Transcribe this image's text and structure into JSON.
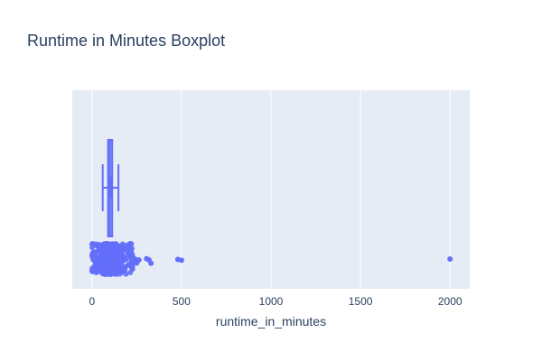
{
  "chart_data": {
    "type": "box",
    "title": "Runtime in Minutes Boxplot",
    "xlabel": "runtime_in_minutes",
    "ylabel": "",
    "xlim": [
      -110,
      2110
    ],
    "x_ticks": [
      0,
      500,
      1000,
      1500,
      2000
    ],
    "x_tick_labels": [
      "0",
      "500",
      "1000",
      "1500",
      "2000"
    ],
    "orientation": "horizontal",
    "grid": true,
    "box": {
      "min": 60,
      "q1": 90,
      "median": 100,
      "q3": 113,
      "max": 148,
      "mean": 105,
      "std": 22
    },
    "points_spread": {
      "from": 0,
      "to": 230
    },
    "outliers": [
      240,
      250,
      262,
      305,
      318,
      330,
      480,
      500,
      2000
    ],
    "colors": {
      "box": "#636efa",
      "plot_bg": "#e5ecf6",
      "grid": "#ffffff",
      "text": "#2a3f5f"
    }
  }
}
